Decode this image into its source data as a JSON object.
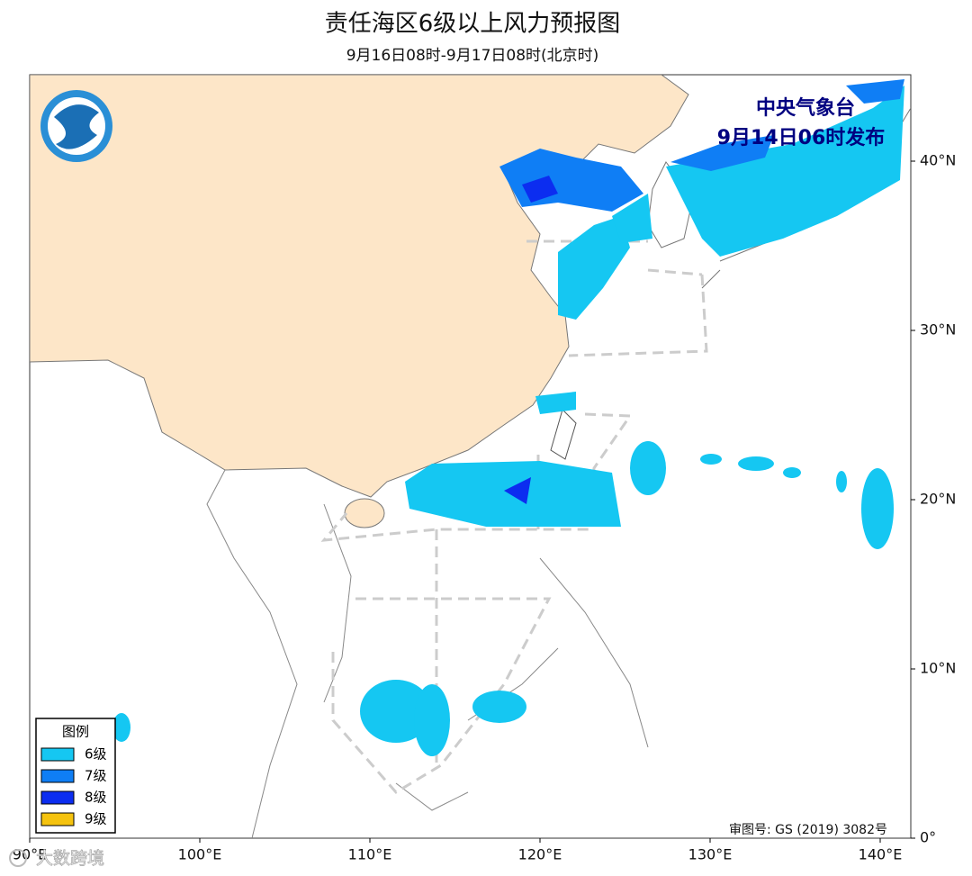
{
  "header": {
    "title": "责任海区6级以上风力预报图",
    "subtitle": "9月16日08时-9月17日08时(北京时)"
  },
  "publisher": {
    "name": "中央气象台",
    "issued": "9月14日06时发布"
  },
  "legend": {
    "title": "图例",
    "items": [
      {
        "label": "6级",
        "color": "#15c7f2"
      },
      {
        "label": "7级",
        "color": "#0f7ef5"
      },
      {
        "label": "8级",
        "color": "#0c2df0"
      },
      {
        "label": "9级",
        "color": "#f5c30f"
      }
    ]
  },
  "axes": {
    "x_ticks": [
      {
        "value": 90,
        "label": "90°E"
      },
      {
        "value": 100,
        "label": "100°E"
      },
      {
        "value": 110,
        "label": "110°E"
      },
      {
        "value": 120,
        "label": "120°E"
      },
      {
        "value": 130,
        "label": "130°E"
      },
      {
        "value": 140,
        "label": "140°E"
      }
    ],
    "y_ticks": [
      {
        "value": 0,
        "label": "0°"
      },
      {
        "value": 10,
        "label": "10°N"
      },
      {
        "value": 20,
        "label": "20°N"
      },
      {
        "value": 30,
        "label": "30°N"
      },
      {
        "value": 40,
        "label": "40°N"
      }
    ]
  },
  "approval": "审图号: GS (2019) 3082号",
  "watermark": "大数跨境"
}
